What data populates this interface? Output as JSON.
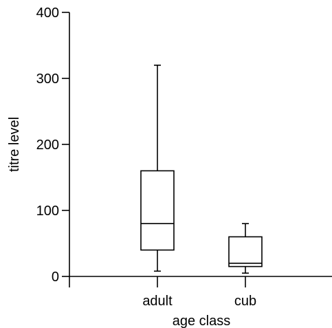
{
  "chart_data": {
    "type": "box",
    "xlabel": "age class",
    "ylabel": "titre level",
    "ylim": [
      0,
      400
    ],
    "yticks": [
      0,
      100,
      200,
      300,
      400
    ],
    "grid": false,
    "categories": [
      "adult",
      "cub"
    ],
    "boxes": [
      {
        "category": "adult",
        "min": 8,
        "q1": 40,
        "median": 80,
        "q3": 160,
        "max": 320
      },
      {
        "category": "cub",
        "min": 5,
        "q1": 15,
        "median": 20,
        "q3": 60,
        "max": 80
      }
    ]
  }
}
